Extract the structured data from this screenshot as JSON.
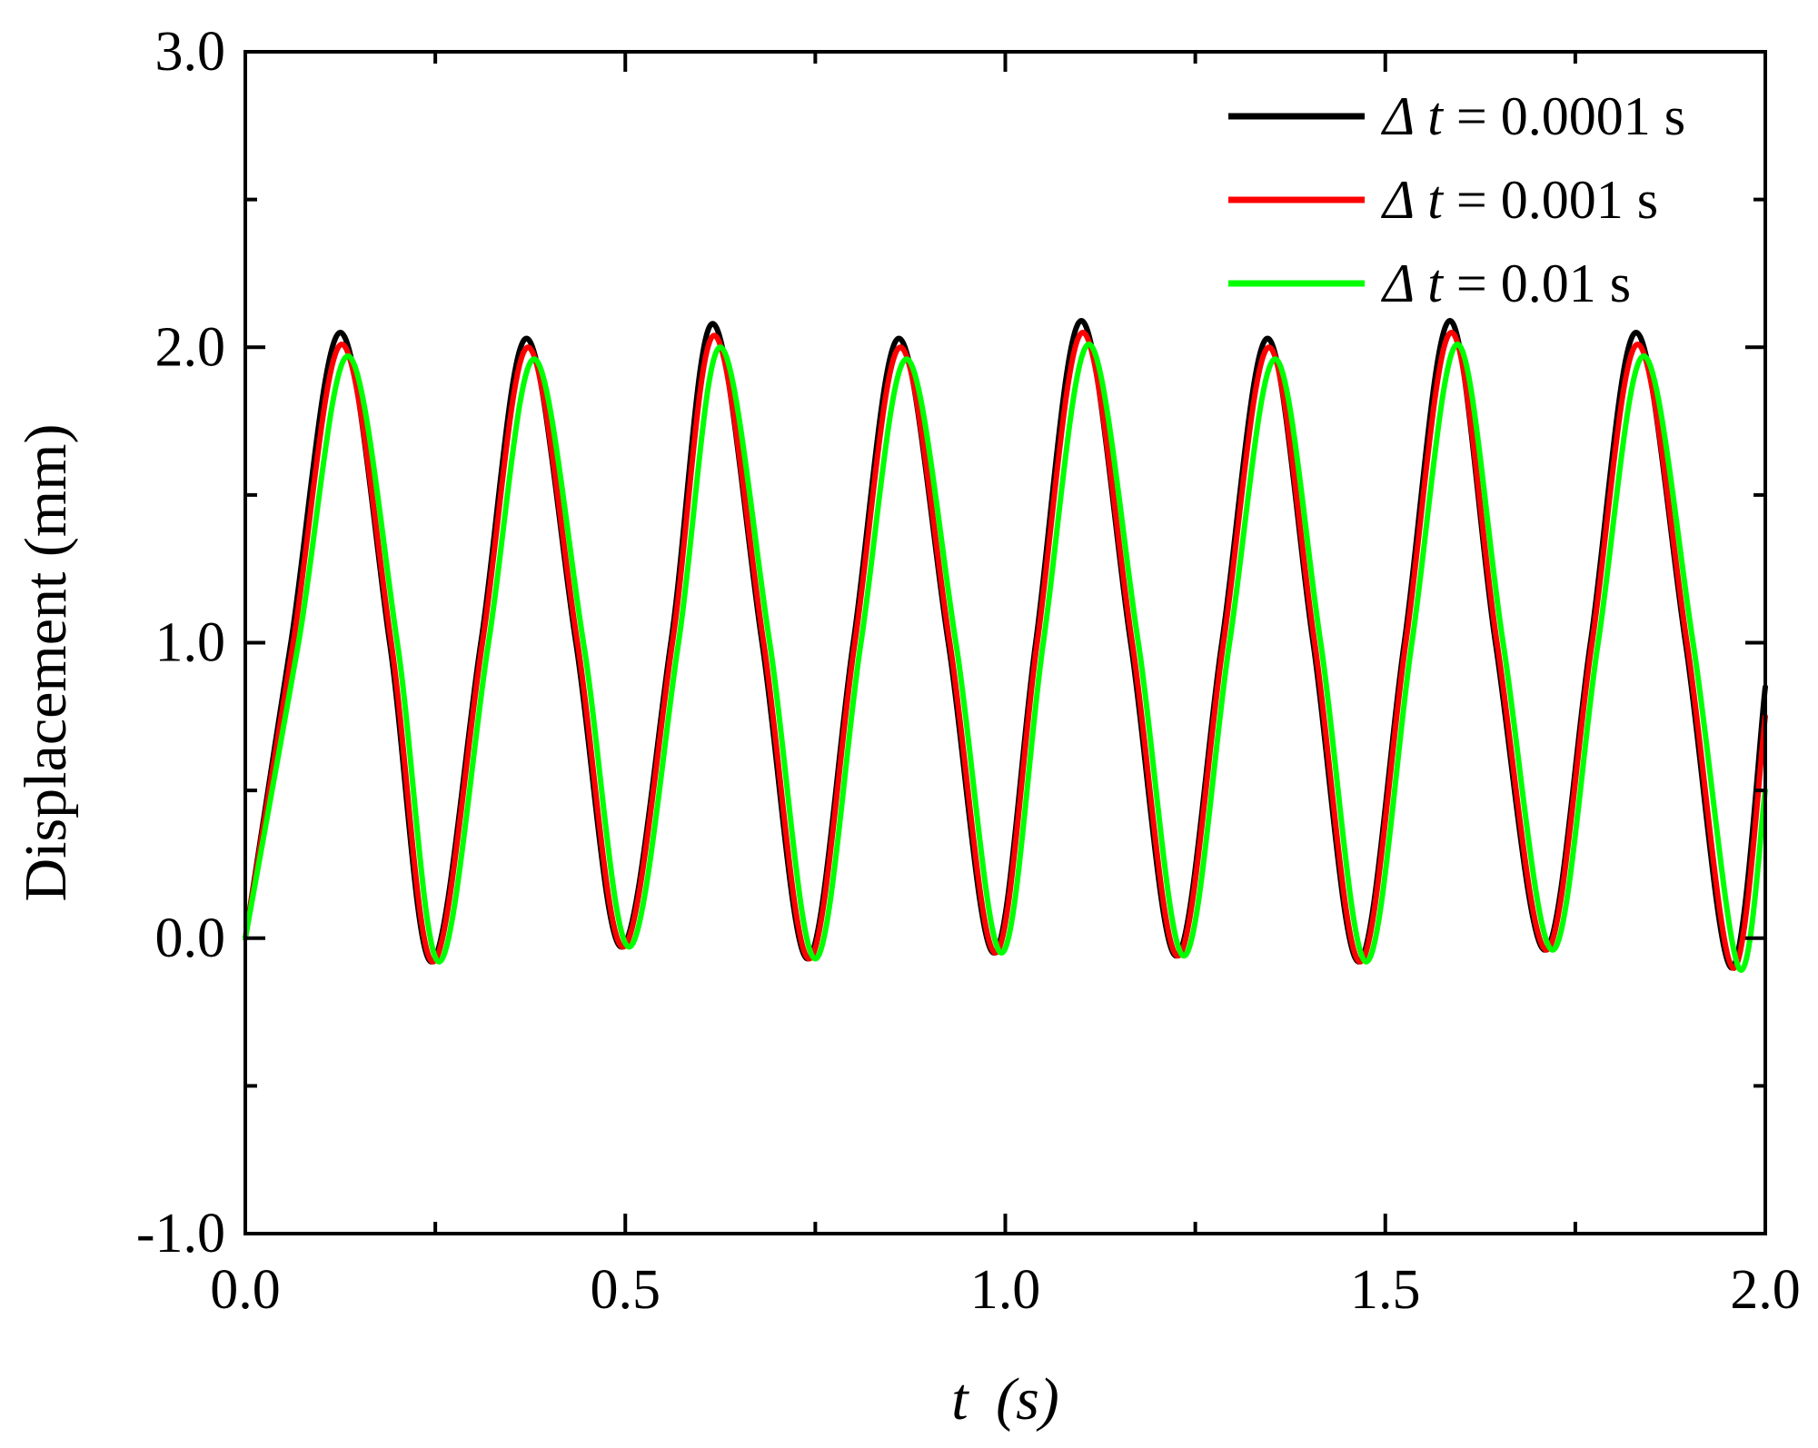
{
  "chart_data": {
    "type": "line",
    "title": "",
    "xlabel": "t (s)",
    "xlabel_parts": {
      "var": "t",
      "unit": "(s)"
    },
    "ylabel": "Displacement (mm)",
    "xlim": [
      0.0,
      2.0
    ],
    "ylim": [
      -1.0,
      3.0
    ],
    "x_ticks": [
      0.0,
      0.5,
      1.0,
      1.5,
      2.0
    ],
    "x_tick_labels": [
      "0.0",
      "0.5",
      "1.0",
      "1.5",
      "2.0"
    ],
    "y_ticks": [
      -1.0,
      0.0,
      1.0,
      2.0,
      3.0
    ],
    "y_tick_labels": [
      "-1.0",
      "0.0",
      "1.0",
      "2.0",
      "3.0"
    ],
    "grid": false,
    "legend_position": "top-right",
    "series": [
      {
        "name": "Δ t = 0.0001 s",
        "legend_parts": {
          "symbol": "Δ",
          "var": "t",
          "rest": " = 0.0001 s"
        },
        "color": "#000000",
        "x": [
          0.0,
          0.06,
          0.125,
          0.19,
          0.245,
          0.31,
          0.37,
          0.435,
          0.495,
          0.56,
          0.615,
          0.68,
          0.74,
          0.8,
          0.86,
          0.925,
          0.985,
          1.04,
          1.1,
          1.165,
          1.225,
          1.285,
          1.345,
          1.405,
          1.465,
          1.525,
          1.585,
          1.645,
          1.71,
          1.77,
          1.83,
          1.895,
          1.955,
          2.0
        ],
        "y": [
          0.0,
          1.0,
          2.05,
          1.0,
          -0.08,
          1.0,
          2.03,
          1.0,
          -0.03,
          1.0,
          2.08,
          1.0,
          -0.07,
          1.0,
          2.03,
          1.0,
          -0.05,
          1.0,
          2.09,
          1.0,
          -0.06,
          1.0,
          2.03,
          1.0,
          -0.08,
          1.0,
          2.09,
          1.0,
          -0.04,
          1.0,
          2.05,
          1.0,
          -0.1,
          0.85
        ]
      },
      {
        "name": "Δ t = 0.001 s",
        "legend_parts": {
          "symbol": "Δ",
          "var": "t",
          "rest": " = 0.001 s"
        },
        "color": "#ff0000",
        "x": [
          0.0,
          0.063,
          0.127,
          0.192,
          0.247,
          0.312,
          0.372,
          0.437,
          0.497,
          0.562,
          0.617,
          0.682,
          0.742,
          0.802,
          0.862,
          0.927,
          0.987,
          1.042,
          1.102,
          1.167,
          1.227,
          1.287,
          1.347,
          1.407,
          1.467,
          1.527,
          1.587,
          1.647,
          1.712,
          1.772,
          1.832,
          1.897,
          1.957,
          2.0
        ],
        "y": [
          0.0,
          1.0,
          2.01,
          1.0,
          -0.08,
          1.0,
          2.0,
          1.0,
          -0.03,
          1.0,
          2.04,
          1.0,
          -0.07,
          1.0,
          2.0,
          1.0,
          -0.05,
          1.0,
          2.05,
          1.0,
          -0.06,
          1.0,
          2.0,
          1.0,
          -0.08,
          1.0,
          2.05,
          1.0,
          -0.04,
          1.0,
          2.01,
          1.0,
          -0.1,
          0.75
        ]
      },
      {
        "name": "Δ t = 0.01 s",
        "legend_parts": {
          "symbol": "Δ",
          "var": "t",
          "rest": " = 0.01 s"
        },
        "color": "#00ff00",
        "x": [
          0.0,
          0.07,
          0.135,
          0.2,
          0.255,
          0.32,
          0.38,
          0.445,
          0.505,
          0.57,
          0.625,
          0.69,
          0.75,
          0.81,
          0.87,
          0.935,
          0.995,
          1.05,
          1.11,
          1.175,
          1.235,
          1.295,
          1.355,
          1.415,
          1.475,
          1.535,
          1.595,
          1.655,
          1.72,
          1.78,
          1.84,
          1.905,
          1.965,
          2.0
        ],
        "y": [
          0.0,
          1.0,
          1.97,
          1.0,
          -0.08,
          1.0,
          1.96,
          1.0,
          -0.03,
          1.0,
          2.0,
          1.0,
          -0.07,
          1.0,
          1.96,
          1.0,
          -0.05,
          1.0,
          2.01,
          1.0,
          -0.06,
          1.0,
          1.96,
          1.0,
          -0.08,
          1.0,
          2.01,
          1.0,
          -0.04,
          1.0,
          1.97,
          1.0,
          -0.1,
          0.5
        ]
      }
    ]
  }
}
